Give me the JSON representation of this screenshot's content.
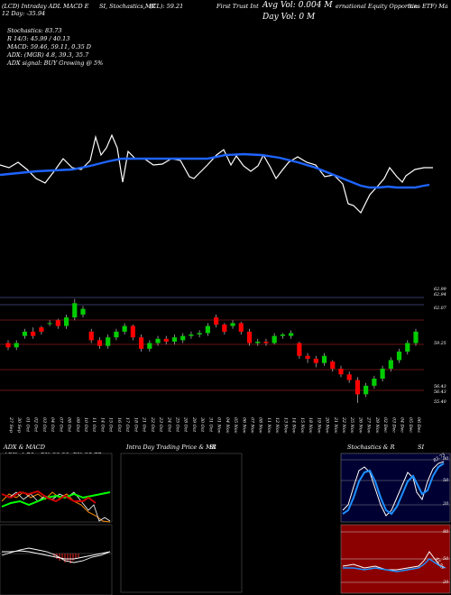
{
  "header": {
    "left1": "(LCD) Intraday ADL MACD E",
    "left2": "12 Day: -35.94",
    "stoch_label": "SI, Stochastics,MR",
    "close_label": "(CL): 59.21",
    "fund_name_1": "First Trust Int",
    "fund_name_2": "ernational Equity Opportun",
    "fund_name_3": "ities ETF) Ma",
    "avg_vol": "Avg Vol: 0.004  M",
    "day_vol": "Day Vol: 0   M"
  },
  "indicators": {
    "stochastics": "Stochastics: 83.73",
    "r": "R                  14/3: 45.99 / 40.13",
    "macd": "MACD: 59.46, 59.11, 0.35 D",
    "adx": "ADX:                           (MGR) 4.8, 39.3, 35.7",
    "adx_signal": "ADX  signal:                      BUY Growing @ 5%"
  },
  "price_axis": [
    "62.99",
    "62.94",
    "62.07",
    "59.25",
    "56.43",
    "56.43",
    "55.40"
  ],
  "date_labels": [
    "27 Sep",
    "30 Sep",
    "01 Oct",
    "02 Oct",
    "03 Oct",
    "04 Oct",
    "07 Oct",
    "08 Oct",
    "09 Oct",
    "10 Oct",
    "11 Oct",
    "14 Oct",
    "15 Oct",
    "16 Oct",
    "17 Oct",
    "18 Oct",
    "21 Oct",
    "22 Oct",
    "23 Oct",
    "24 Oct",
    "25 Oct",
    "28 Oct",
    "29 Oct",
    "30 Oct",
    "31 Oct",
    "01 Nov",
    "04 Nov",
    "05 Nov",
    "06 Nov",
    "07 Nov",
    "08 Nov",
    "11 Nov",
    "12 Nov",
    "13 Nov",
    "14 Nov",
    "15 Nov",
    "18 Nov",
    "19 Nov",
    "20 Nov",
    "21 Nov",
    "22 Nov",
    "25 Nov",
    "26 Nov",
    "27 Nov",
    "29 Nov",
    "02 Dec",
    "03 Dec",
    "04 Dec",
    "05 Dec",
    "06 Dec"
  ],
  "panels": {
    "adx_title": "ADX  & MACD",
    "adx_values": "ADX: 4.76  +DY: 39.29  -DY: 35.77",
    "intraday_title": "Intra  Day Trading Price  & MR",
    "si_title": "SI",
    "stoch_title": "Stochastics & R",
    "stoch_si": "SI",
    "stoch_ticks": [
      "80",
      "50",
      "20"
    ],
    "stoch_value": "83.73",
    "rsi_ticks": [
      "80",
      "50",
      "20"
    ],
    "rsi_value": "45.99"
  },
  "colors": {
    "up": "#00cc00",
    "down": "#ff0000",
    "ma": "#1e64ff",
    "grid": "#8b1a1a"
  },
  "chart_data": {
    "type": "candlestick",
    "title": "",
    "categories": [
      "27 Sep",
      "30 Sep",
      "01 Oct",
      "02 Oct",
      "03 Oct",
      "04 Oct",
      "07 Oct",
      "08 Oct",
      "09 Oct",
      "10 Oct",
      "11 Oct",
      "14 Oct",
      "15 Oct",
      "16 Oct",
      "17 Oct",
      "18 Oct",
      "21 Oct",
      "22 Oct",
      "23 Oct",
      "24 Oct",
      "25 Oct",
      "28 Oct",
      "29 Oct",
      "30 Oct",
      "31 Oct",
      "01 Nov",
      "04 Nov",
      "05 Nov",
      "06 Nov",
      "07 Nov",
      "08 Nov",
      "11 Nov",
      "12 Nov",
      "13 Nov",
      "14 Nov",
      "15 Nov",
      "18 Nov",
      "19 Nov",
      "20 Nov",
      "21 Nov",
      "22 Nov",
      "25 Nov",
      "26 Nov",
      "27 Nov",
      "29 Nov",
      "02 Dec",
      "03 Dec",
      "04 Dec",
      "05 Dec",
      "06 Dec"
    ],
    "open": [
      59.8,
      59.5,
      60.3,
      60.6,
      60.9,
      61.2,
      61.4,
      61.0,
      61.6,
      61.8,
      60.6,
      60.0,
      59.6,
      60.2,
      60.6,
      61.0,
      60.2,
      59.4,
      59.8,
      60.1,
      59.9,
      60.0,
      60.3,
      60.4,
      60.5,
      61.6,
      61.1,
      61.0,
      61.2,
      60.6,
      59.8,
      59.9,
      59.8,
      60.3,
      60.3,
      59.8,
      58.9,
      58.7,
      58.4,
      58.5,
      58.0,
      57.6,
      57.2,
      56.2,
      56.8,
      57.3,
      58.0,
      58.6,
      59.2,
      59.8
    ],
    "close": [
      59.5,
      59.8,
      60.6,
      60.3,
      60.6,
      61.2,
      61.0,
      61.6,
      62.6,
      62.2,
      60.0,
      59.6,
      60.2,
      60.6,
      61.0,
      60.2,
      59.4,
      59.8,
      60.1,
      59.9,
      60.2,
      60.3,
      60.4,
      60.5,
      61.0,
      61.1,
      60.6,
      61.2,
      60.6,
      59.8,
      59.9,
      59.8,
      60.3,
      60.4,
      60.5,
      58.9,
      58.7,
      58.4,
      58.9,
      58.0,
      57.6,
      57.2,
      56.2,
      56.8,
      57.3,
      58.0,
      58.6,
      59.2,
      59.8,
      60.6
    ],
    "high": [
      60.0,
      60.0,
      60.8,
      60.9,
      61.0,
      61.4,
      61.5,
      61.8,
      62.9,
      62.4,
      60.8,
      60.2,
      60.4,
      60.8,
      61.2,
      61.1,
      60.4,
      60.0,
      60.3,
      60.3,
      60.4,
      60.5,
      60.6,
      60.7,
      61.2,
      61.8,
      61.2,
      61.4,
      61.3,
      60.8,
      60.1,
      60.1,
      60.5,
      60.5,
      60.7,
      59.9,
      59.1,
      58.9,
      59.1,
      58.6,
      58.2,
      57.8,
      57.4,
      57.0,
      57.5,
      58.2,
      58.8,
      59.4,
      60.0,
      60.8
    ],
    "low": [
      59.3,
      59.3,
      60.1,
      60.1,
      60.4,
      61.0,
      60.8,
      60.8,
      61.4,
      61.6,
      59.8,
      59.4,
      59.4,
      60.0,
      60.4,
      60.0,
      59.2,
      59.2,
      59.6,
      59.7,
      59.7,
      59.8,
      60.1,
      60.2,
      60.3,
      60.9,
      60.4,
      60.8,
      60.4,
      59.6,
      59.6,
      59.6,
      59.7,
      60.1,
      60.1,
      58.7,
      58.4,
      58.1,
      58.2,
      57.8,
      57.4,
      57.0,
      55.6,
      56.0,
      56.6,
      57.1,
      57.8,
      58.4,
      59.0,
      59.6
    ],
    "ylim": [
      55.4,
      63.0
    ]
  }
}
